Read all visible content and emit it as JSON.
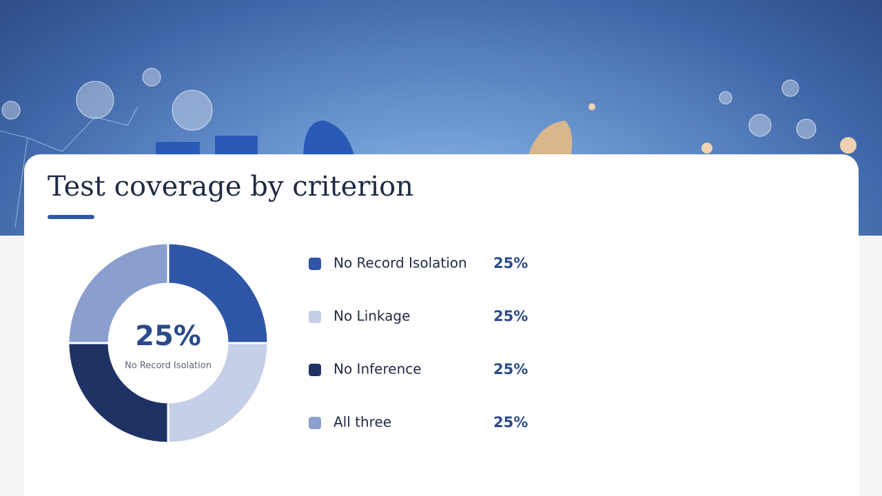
{
  "chart_data": {
    "type": "pie",
    "title": "Test coverage by criterion",
    "categories": [
      "No Record Isolation",
      "No Linkage",
      "No Inference",
      "All three"
    ],
    "values": [
      25,
      25,
      25,
      25
    ],
    "value_labels": [
      "25%",
      "25%",
      "25%",
      "25%"
    ],
    "colors": [
      "#2f56a6",
      "#c5d0e8",
      "#1e3264",
      "#8b9fcf"
    ]
  }
}
